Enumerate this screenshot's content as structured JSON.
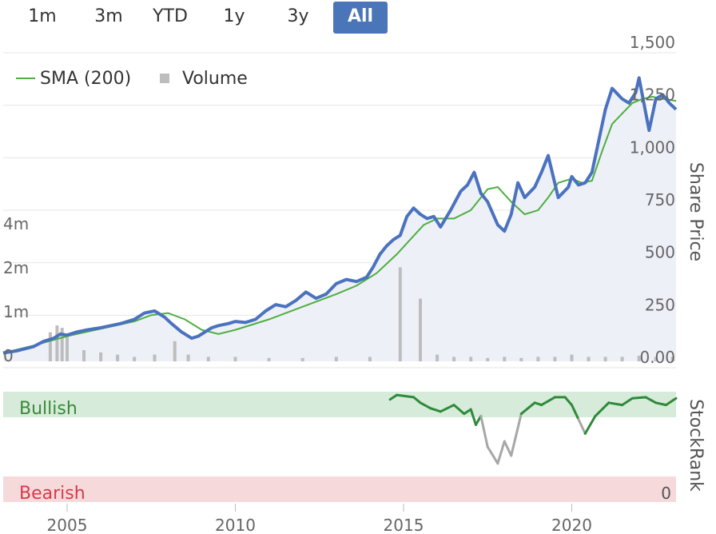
{
  "range_selector": {
    "buttons": [
      {
        "label": "1m",
        "active": false
      },
      {
        "label": "3m",
        "active": false
      },
      {
        "label": "YTD",
        "active": false
      },
      {
        "label": "1y",
        "active": false
      },
      {
        "label": "3y",
        "active": false
      },
      {
        "label": "All",
        "active": true
      }
    ]
  },
  "legend": {
    "sma_label": "SMA (200)",
    "volume_label": "Volume"
  },
  "colors": {
    "price": "#4a72bf",
    "sma": "#4daf3f",
    "volume": "#bdbdbd",
    "bullish_band": "#d6ebd9",
    "bearish_band": "#f6d9db",
    "stockrank_high": "#2f8a3a",
    "stockrank_low": "#a7a7a7",
    "active_button": "#4a75b9"
  },
  "chart_data": [
    {
      "type": "line",
      "ylabel": "Share Price",
      "y_ticks": [
        "0.00",
        "250",
        "500",
        "750",
        "1,000",
        "1,250",
        "1,500"
      ],
      "ylim": [
        0,
        1500
      ],
      "x_ticks": [
        "2005",
        "2010",
        "2015",
        "2020"
      ],
      "xlim": [
        2003.1,
        2023.1
      ],
      "series": [
        {
          "name": "Share Price",
          "x": [
            2003.1,
            2003.5,
            2004.0,
            2004.3,
            2004.6,
            2004.8,
            2005.0,
            2005.3,
            2005.6,
            2006.0,
            2006.3,
            2006.6,
            2007.0,
            2007.3,
            2007.6,
            2007.9,
            2008.1,
            2008.4,
            2008.7,
            2008.9,
            2009.1,
            2009.3,
            2009.5,
            2009.8,
            2010.0,
            2010.3,
            2010.6,
            2010.9,
            2011.2,
            2011.5,
            2011.8,
            2012.1,
            2012.4,
            2012.7,
            2013.0,
            2013.3,
            2013.6,
            2013.9,
            2014.1,
            2014.3,
            2014.5,
            2014.7,
            2014.9,
            2015.1,
            2015.3,
            2015.5,
            2015.7,
            2015.9,
            2016.1,
            2016.4,
            2016.7,
            2016.9,
            2017.1,
            2017.3,
            2017.5,
            2017.8,
            2018.0,
            2018.2,
            2018.4,
            2018.6,
            2018.9,
            2019.1,
            2019.3,
            2019.6,
            2019.9,
            2020.0,
            2020.2,
            2020.4,
            2020.6,
            2020.8,
            2021.0,
            2021.2,
            2021.5,
            2021.7,
            2021.9,
            2022.0,
            2022.3,
            2022.5,
            2022.7,
            2022.9,
            2023.1
          ],
          "y": [
            40,
            50,
            70,
            95,
            110,
            130,
            125,
            140,
            150,
            160,
            170,
            180,
            200,
            230,
            240,
            210,
            180,
            140,
            110,
            120,
            140,
            160,
            170,
            180,
            190,
            185,
            200,
            240,
            270,
            260,
            290,
            330,
            300,
            320,
            370,
            390,
            380,
            400,
            450,
            510,
            550,
            580,
            600,
            690,
            730,
            700,
            680,
            690,
            640,
            720,
            810,
            840,
            900,
            800,
            760,
            650,
            620,
            700,
            850,
            780,
            830,
            900,
            980,
            780,
            830,
            880,
            840,
            850,
            900,
            1050,
            1200,
            1300,
            1250,
            1230,
            1280,
            1350,
            1100,
            1250,
            1270,
            1230,
            1200
          ]
        },
        {
          "name": "SMA (200)",
          "x": [
            2003.1,
            2004.0,
            2005.0,
            2006.0,
            2007.0,
            2007.5,
            2008.0,
            2008.5,
            2009.0,
            2009.5,
            2010.0,
            2011.0,
            2012.0,
            2013.0,
            2013.6,
            2014.2,
            2014.8,
            2015.2,
            2015.6,
            2016.0,
            2016.5,
            2017.0,
            2017.5,
            2017.8,
            2018.2,
            2018.6,
            2019.0,
            2019.3,
            2019.6,
            2020.0,
            2020.3,
            2020.6,
            2020.9,
            2021.2,
            2021.5,
            2021.8,
            2022.1,
            2022.4,
            2022.7,
            2023.1
          ],
          "y": [
            40,
            75,
            120,
            155,
            190,
            220,
            230,
            200,
            150,
            130,
            150,
            200,
            260,
            320,
            360,
            420,
            510,
            580,
            650,
            680,
            680,
            720,
            820,
            830,
            760,
            700,
            720,
            780,
            850,
            870,
            850,
            860,
            1000,
            1130,
            1180,
            1230,
            1250,
            1260,
            1250,
            1240
          ]
        }
      ]
    },
    {
      "type": "bar",
      "name": "Volume",
      "y_ticks": [
        "0",
        "1m",
        "2m",
        "4m"
      ],
      "x": [
        2004.5,
        2004.7,
        2004.85,
        2005.0,
        2005.5,
        2006.0,
        2006.5,
        2007.0,
        2007.6,
        2008.2,
        2008.6,
        2009.2,
        2010.0,
        2011.0,
        2012.0,
        2013.0,
        2014.0,
        2014.9,
        2015.5,
        2016.0,
        2016.5,
        2017.0,
        2017.5,
        2018.0,
        2018.5,
        2019.0,
        2019.5,
        2020.0,
        2020.5,
        2021.0,
        2021.5,
        2022.0,
        2022.5,
        2023.0
      ],
      "values": [
        1.3,
        1.6,
        1.5,
        1.1,
        0.5,
        0.4,
        0.3,
        0.2,
        0.3,
        0.9,
        0.3,
        0.2,
        0.2,
        0.15,
        0.15,
        0.2,
        0.2,
        4.2,
        2.8,
        0.3,
        0.2,
        0.2,
        0.15,
        0.2,
        0.15,
        0.2,
        0.2,
        0.3,
        0.2,
        0.2,
        0.2,
        0.25,
        0.2,
        0.2
      ]
    },
    {
      "type": "line",
      "ylabel": "StockRank",
      "bands": [
        "Bullish",
        "Bearish"
      ],
      "y_ticks": [
        "0"
      ],
      "ylim": [
        0,
        100
      ],
      "series": [
        {
          "name": "StockRank",
          "x": [
            2014.6,
            2014.8,
            2015.3,
            2015.5,
            2015.8,
            2016.1,
            2016.5,
            2016.8,
            2017.0,
            2017.15,
            2017.3,
            2017.5,
            2017.8,
            2018.0,
            2018.2,
            2018.5,
            2018.9,
            2019.1,
            2019.5,
            2019.8,
            2020.0,
            2020.2,
            2020.4,
            2020.7,
            2021.1,
            2021.5,
            2021.8,
            2022.2,
            2022.5,
            2022.8,
            2023.1
          ],
          "y": [
            93,
            97,
            95,
            90,
            85,
            82,
            88,
            80,
            84,
            70,
            78,
            50,
            35,
            55,
            42,
            80,
            90,
            88,
            95,
            95,
            88,
            75,
            62,
            78,
            90,
            88,
            94,
            95,
            90,
            88,
            94
          ]
        }
      ]
    }
  ]
}
